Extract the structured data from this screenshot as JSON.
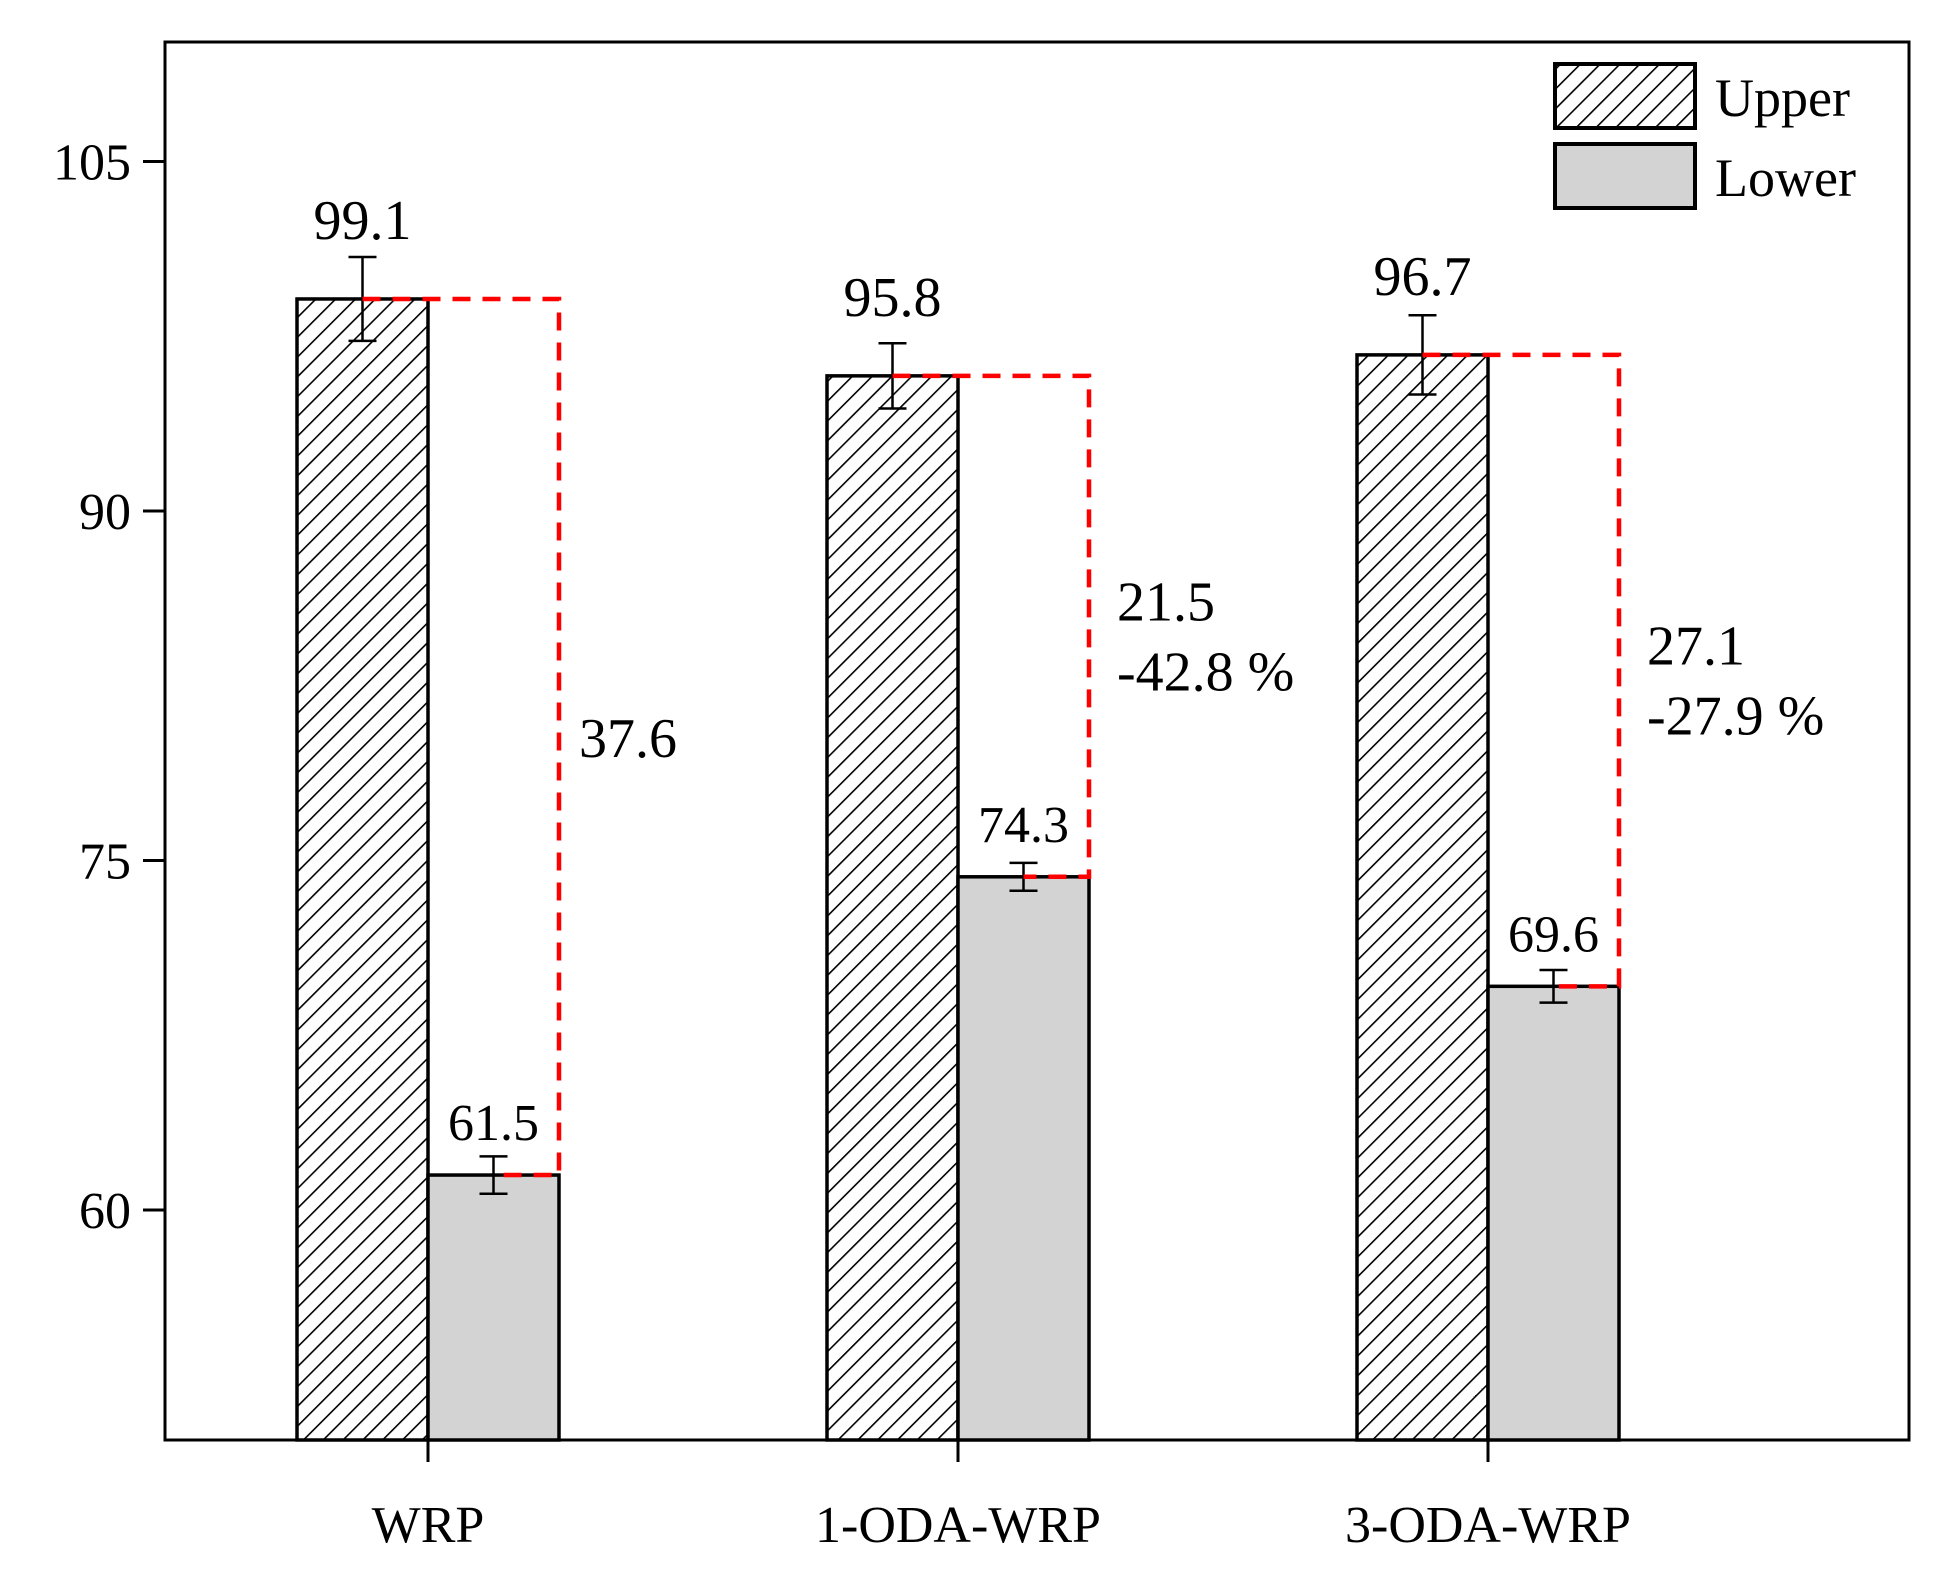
{
  "chart_data": {
    "type": "bar",
    "categories": [
      "WRP",
      "1-ODA-WRP",
      "3-ODA-WRP"
    ],
    "series": [
      {
        "name": "Upper",
        "values": [
          99.1,
          95.8,
          96.7
        ],
        "errors": [
          1.8,
          1.4,
          1.7
        ],
        "fill": "hatch"
      },
      {
        "name": "Lower",
        "values": [
          61.5,
          74.3,
          69.6
        ],
        "errors": [
          0.8,
          0.6,
          0.7
        ],
        "fill": "#d3d3d3"
      }
    ],
    "value_labels": {
      "upper": [
        "99.1",
        "95.8",
        "96.7"
      ],
      "lower": [
        "61.5",
        "74.3",
        "69.6"
      ]
    },
    "differences": [
      {
        "value": "37.6",
        "change": ""
      },
      {
        "value": "21.5",
        "change": "-42.8 %"
      },
      {
        "value": "27.1",
        "change": "-27.9 %"
      }
    ],
    "yticks": [
      60,
      75,
      90,
      105
    ],
    "ylim": [
      50,
      110
    ],
    "grid": false,
    "legend_position": "top-right",
    "connector_color": "#ff0000",
    "title": "",
    "xlabel": "",
    "ylabel": ""
  }
}
